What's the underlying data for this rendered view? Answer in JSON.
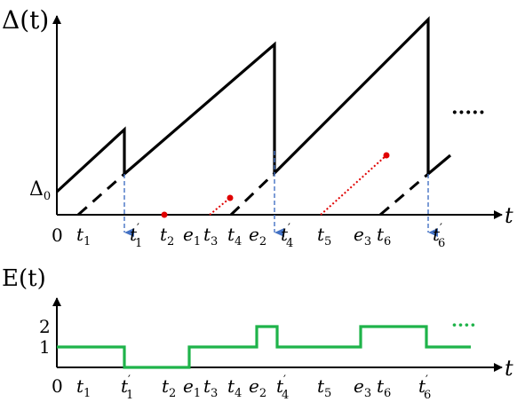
{
  "top_plot": {
    "y_axis_label": "Δ(t)",
    "x_axis_label": "t",
    "y_tick_label": "Δ",
    "y_tick_subscript": "0",
    "origin_label": "0",
    "ellipsis": "·····",
    "x_labels": [
      {
        "base": "t",
        "sub": "1",
        "prime": false
      },
      {
        "base": "t",
        "sub": "1",
        "prime": true
      },
      {
        "base": "t",
        "sub": "2",
        "prime": false
      },
      {
        "base": "e",
        "sub": "1",
        "prime": false
      },
      {
        "base": "t",
        "sub": "3",
        "prime": false
      },
      {
        "base": "t",
        "sub": "4",
        "prime": false
      },
      {
        "base": "e",
        "sub": "2",
        "prime": false
      },
      {
        "base": "t",
        "sub": "4",
        "prime": true
      },
      {
        "base": "t",
        "sub": "5",
        "prime": false
      },
      {
        "base": "e",
        "sub": "3",
        "prime": false
      },
      {
        "base": "t",
        "sub": "6",
        "prime": false
      },
      {
        "base": "t",
        "sub": "6",
        "prime": true
      }
    ]
  },
  "bottom_plot": {
    "y_axis_label": "E(t)",
    "x_axis_label": "t",
    "origin_label": "0",
    "y_ticks": [
      "2",
      "1"
    ],
    "ellipsis": "····",
    "x_labels": [
      {
        "base": "t",
        "sub": "1",
        "prime": false
      },
      {
        "base": "t",
        "sub": "1",
        "prime": true
      },
      {
        "base": "t",
        "sub": "2",
        "prime": false
      },
      {
        "base": "e",
        "sub": "1",
        "prime": false
      },
      {
        "base": "t",
        "sub": "3",
        "prime": false
      },
      {
        "base": "t",
        "sub": "4",
        "prime": false
      },
      {
        "base": "e",
        "sub": "2",
        "prime": false
      },
      {
        "base": "t",
        "sub": "4",
        "prime": true
      },
      {
        "base": "t",
        "sub": "5",
        "prime": false
      },
      {
        "base": "e",
        "sub": "3",
        "prime": false
      },
      {
        "base": "t",
        "sub": "6",
        "prime": false
      },
      {
        "base": "t",
        "sub": "6",
        "prime": true
      }
    ]
  },
  "colors": {
    "age_curve": "#000000",
    "delivery_arrow": "#4472c4",
    "dropped_update": "#e00000",
    "energy_curve": "#1fb34a"
  }
}
